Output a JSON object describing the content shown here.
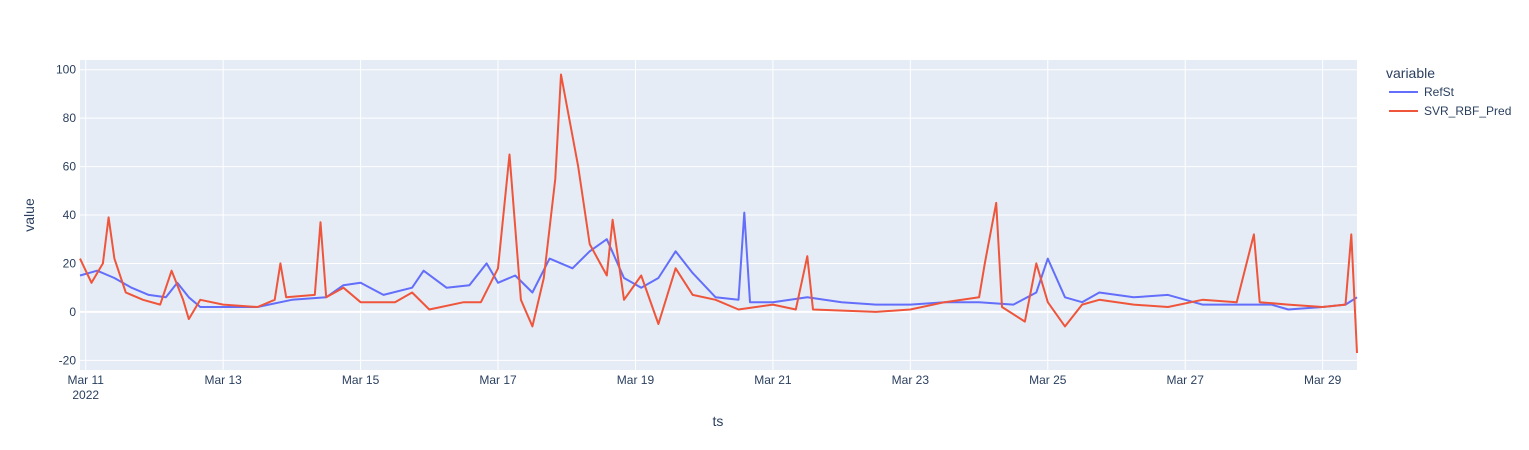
{
  "chart_data": {
    "type": "line",
    "title": "",
    "xlabel": "ts",
    "ylabel": "value",
    "x_range": [
      "2022-03-10 22:00",
      "2022-03-29 12:00"
    ],
    "ylim": [
      -24,
      104
    ],
    "grid": true,
    "legend": {
      "title": "variable",
      "placement": "top-right"
    },
    "x_ticks": [
      {
        "t": "2022-03-11",
        "label": "Mar 11",
        "sub": "2022"
      },
      {
        "t": "2022-03-13",
        "label": "Mar 13"
      },
      {
        "t": "2022-03-15",
        "label": "Mar 15"
      },
      {
        "t": "2022-03-17",
        "label": "Mar 17"
      },
      {
        "t": "2022-03-19",
        "label": "Mar 19"
      },
      {
        "t": "2022-03-21",
        "label": "Mar 21"
      },
      {
        "t": "2022-03-23",
        "label": "Mar 23"
      },
      {
        "t": "2022-03-25",
        "label": "Mar 25"
      },
      {
        "t": "2022-03-27",
        "label": "Mar 27"
      },
      {
        "t": "2022-03-29",
        "label": "Mar 29"
      }
    ],
    "y_ticks": [
      -20,
      0,
      20,
      40,
      60,
      80,
      100
    ],
    "series": [
      {
        "name": "RefSt",
        "color": "#636efa",
        "points": [
          [
            "2022-03-10 22:00",
            15
          ],
          [
            "2022-03-11 04:00",
            17
          ],
          [
            "2022-03-11 10:00",
            14
          ],
          [
            "2022-03-11 16:00",
            10
          ],
          [
            "2022-03-11 22:00",
            7
          ],
          [
            "2022-03-12 04:00",
            6
          ],
          [
            "2022-03-12 08:00",
            12
          ],
          [
            "2022-03-12 12:00",
            6
          ],
          [
            "2022-03-12 16:00",
            2
          ],
          [
            "2022-03-13 00:00",
            2
          ],
          [
            "2022-03-13 12:00",
            2
          ],
          [
            "2022-03-14 00:00",
            5
          ],
          [
            "2022-03-14 12:00",
            6
          ],
          [
            "2022-03-14 18:00",
            11
          ],
          [
            "2022-03-15 00:00",
            12
          ],
          [
            "2022-03-15 08:00",
            7
          ],
          [
            "2022-03-15 18:00",
            10
          ],
          [
            "2022-03-15 22:00",
            17
          ],
          [
            "2022-03-16 06:00",
            10
          ],
          [
            "2022-03-16 14:00",
            11
          ],
          [
            "2022-03-16 20:00",
            20
          ],
          [
            "2022-03-17 00:00",
            12
          ],
          [
            "2022-03-17 06:00",
            15
          ],
          [
            "2022-03-17 12:00",
            8
          ],
          [
            "2022-03-17 18:00",
            22
          ],
          [
            "2022-03-18 02:00",
            18
          ],
          [
            "2022-03-18 08:00",
            25
          ],
          [
            "2022-03-18 14:00",
            30
          ],
          [
            "2022-03-18 20:00",
            14
          ],
          [
            "2022-03-19 02:00",
            10
          ],
          [
            "2022-03-19 08:00",
            14
          ],
          [
            "2022-03-19 14:00",
            25
          ],
          [
            "2022-03-19 20:00",
            16
          ],
          [
            "2022-03-20 04:00",
            6
          ],
          [
            "2022-03-20 12:00",
            5
          ],
          [
            "2022-03-20 14:00",
            41
          ],
          [
            "2022-03-20 16:00",
            4
          ],
          [
            "2022-03-21 00:00",
            4
          ],
          [
            "2022-03-21 12:00",
            6
          ],
          [
            "2022-03-22 00:00",
            4
          ],
          [
            "2022-03-22 12:00",
            3
          ],
          [
            "2022-03-23 00:00",
            3
          ],
          [
            "2022-03-23 12:00",
            4
          ],
          [
            "2022-03-24 00:00",
            4
          ],
          [
            "2022-03-24 12:00",
            3
          ],
          [
            "2022-03-24 20:00",
            8
          ],
          [
            "2022-03-25 00:00",
            22
          ],
          [
            "2022-03-25 06:00",
            6
          ],
          [
            "2022-03-25 12:00",
            4
          ],
          [
            "2022-03-25 18:00",
            8
          ],
          [
            "2022-03-26 06:00",
            6
          ],
          [
            "2022-03-26 18:00",
            7
          ],
          [
            "2022-03-27 06:00",
            3
          ],
          [
            "2022-03-27 18:00",
            3
          ],
          [
            "2022-03-28 06:00",
            3
          ],
          [
            "2022-03-28 12:00",
            1
          ],
          [
            "2022-03-29 00:00",
            2
          ],
          [
            "2022-03-29 08:00",
            3
          ],
          [
            "2022-03-29 12:00",
            6
          ]
        ]
      },
      {
        "name": "SVR_RBF_Pred",
        "color": "#ef553b",
        "points": [
          [
            "2022-03-10 22:00",
            22
          ],
          [
            "2022-03-11 02:00",
            12
          ],
          [
            "2022-03-11 06:00",
            20
          ],
          [
            "2022-03-11 08:00",
            39
          ],
          [
            "2022-03-11 10:00",
            22
          ],
          [
            "2022-03-11 14:00",
            8
          ],
          [
            "2022-03-11 20:00",
            5
          ],
          [
            "2022-03-12 02:00",
            3
          ],
          [
            "2022-03-12 06:00",
            17
          ],
          [
            "2022-03-12 10:00",
            5
          ],
          [
            "2022-03-12 12:00",
            -3
          ],
          [
            "2022-03-12 16:00",
            5
          ],
          [
            "2022-03-13 00:00",
            3
          ],
          [
            "2022-03-13 12:00",
            2
          ],
          [
            "2022-03-13 18:00",
            5
          ],
          [
            "2022-03-13 20:00",
            20
          ],
          [
            "2022-03-13 22:00",
            6
          ],
          [
            "2022-03-14 08:00",
            7
          ],
          [
            "2022-03-14 10:00",
            37
          ],
          [
            "2022-03-14 12:00",
            6
          ],
          [
            "2022-03-14 18:00",
            10
          ],
          [
            "2022-03-15 00:00",
            4
          ],
          [
            "2022-03-15 12:00",
            4
          ],
          [
            "2022-03-15 18:00",
            8
          ],
          [
            "2022-03-16 00:00",
            1
          ],
          [
            "2022-03-16 12:00",
            4
          ],
          [
            "2022-03-16 18:00",
            4
          ],
          [
            "2022-03-17 00:00",
            18
          ],
          [
            "2022-03-17 04:00",
            65
          ],
          [
            "2022-03-17 08:00",
            5
          ],
          [
            "2022-03-17 12:00",
            -6
          ],
          [
            "2022-03-17 16:00",
            14
          ],
          [
            "2022-03-17 20:00",
            55
          ],
          [
            "2022-03-17 22:00",
            98
          ],
          [
            "2022-03-18 04:00",
            60
          ],
          [
            "2022-03-18 08:00",
            28
          ],
          [
            "2022-03-18 14:00",
            15
          ],
          [
            "2022-03-18 16:00",
            38
          ],
          [
            "2022-03-18 20:00",
            5
          ],
          [
            "2022-03-19 02:00",
            15
          ],
          [
            "2022-03-19 08:00",
            -5
          ],
          [
            "2022-03-19 14:00",
            18
          ],
          [
            "2022-03-19 20:00",
            7
          ],
          [
            "2022-03-20 04:00",
            5
          ],
          [
            "2022-03-20 12:00",
            1
          ],
          [
            "2022-03-21 00:00",
            3
          ],
          [
            "2022-03-21 08:00",
            1
          ],
          [
            "2022-03-21 12:00",
            23
          ],
          [
            "2022-03-21 14:00",
            1
          ],
          [
            "2022-03-22 12:00",
            0
          ],
          [
            "2022-03-23 00:00",
            1
          ],
          [
            "2022-03-23 12:00",
            4
          ],
          [
            "2022-03-24 00:00",
            6
          ],
          [
            "2022-03-24 02:00",
            20
          ],
          [
            "2022-03-24 06:00",
            45
          ],
          [
            "2022-03-24 08:00",
            2
          ],
          [
            "2022-03-24 16:00",
            -4
          ],
          [
            "2022-03-24 20:00",
            20
          ],
          [
            "2022-03-25 00:00",
            4
          ],
          [
            "2022-03-25 06:00",
            -6
          ],
          [
            "2022-03-25 12:00",
            3
          ],
          [
            "2022-03-25 18:00",
            5
          ],
          [
            "2022-03-26 06:00",
            3
          ],
          [
            "2022-03-26 18:00",
            2
          ],
          [
            "2022-03-27 06:00",
            5
          ],
          [
            "2022-03-27 18:00",
            4
          ],
          [
            "2022-03-28 00:00",
            32
          ],
          [
            "2022-03-28 02:00",
            4
          ],
          [
            "2022-03-28 12:00",
            3
          ],
          [
            "2022-03-29 00:00",
            2
          ],
          [
            "2022-03-29 08:00",
            3
          ],
          [
            "2022-03-29 10:00",
            32
          ],
          [
            "2022-03-29 12:00",
            -17
          ]
        ]
      }
    ]
  }
}
